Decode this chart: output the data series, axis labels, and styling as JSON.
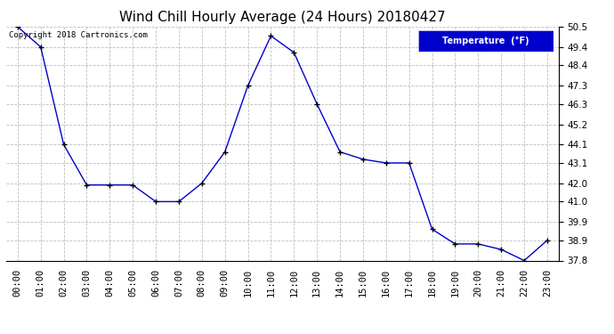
{
  "title": "Wind Chill Hourly Average (24 Hours) 20180427",
  "copyright": "Copyright 2018 Cartronics.com",
  "legend_label": "Temperature  (°F)",
  "hours": [
    "00:00",
    "01:00",
    "02:00",
    "03:00",
    "04:00",
    "05:00",
    "06:00",
    "07:00",
    "08:00",
    "09:00",
    "10:00",
    "11:00",
    "12:00",
    "13:00",
    "14:00",
    "15:00",
    "16:00",
    "17:00",
    "18:00",
    "19:00",
    "20:00",
    "21:00",
    "22:00",
    "23:00"
  ],
  "values": [
    50.5,
    49.4,
    44.1,
    41.9,
    41.9,
    41.9,
    41.0,
    41.0,
    42.0,
    43.7,
    47.3,
    50.0,
    49.1,
    46.3,
    43.7,
    43.3,
    43.1,
    43.1,
    39.5,
    38.7,
    38.7,
    38.4,
    37.8,
    38.9
  ],
  "ylim": [
    37.8,
    50.5
  ],
  "yticks": [
    37.8,
    38.9,
    39.9,
    41.0,
    42.0,
    43.1,
    44.1,
    45.2,
    46.3,
    47.3,
    48.4,
    49.4,
    50.5
  ],
  "line_color": "#0000cc",
  "marker": "+",
  "marker_color": "#000000",
  "background_color": "#ffffff",
  "grid_color": "#bebebe",
  "title_fontsize": 11,
  "axis_fontsize": 7.5,
  "legend_bg": "#0000cc",
  "legend_text_color": "#ffffff"
}
